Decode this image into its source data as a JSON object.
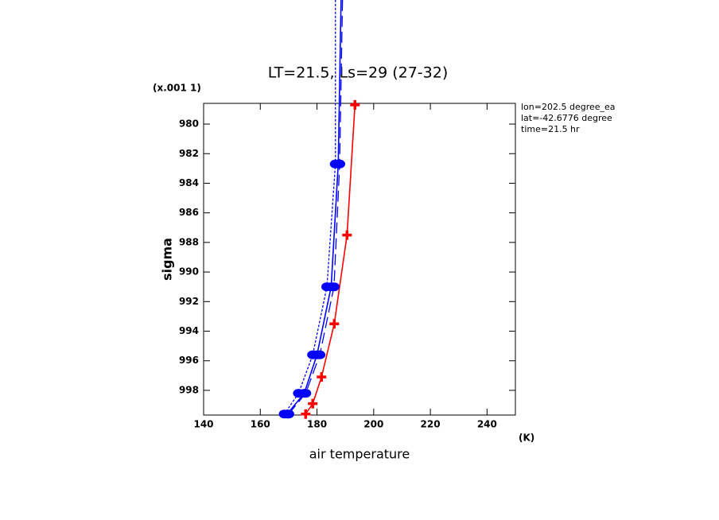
{
  "chart_data": {
    "type": "line",
    "title": "LT=21.5, Ls=29 (27-32)",
    "xlabel": "air temperature",
    "ylabel": "sigma",
    "x_unit": "(K)",
    "y_scale_label": "(x.001 1)",
    "annotations": [
      "lon=202.5 degree_ea",
      "lat=-42.6776 degree",
      "time=21.5 hr"
    ],
    "xlim": [
      140,
      250
    ],
    "xticks": [
      140,
      160,
      180,
      200,
      220,
      240
    ],
    "ylim": [
      999.67,
      978.6
    ],
    "yticks": [
      980,
      982,
      984,
      986,
      988,
      990,
      992,
      994,
      996,
      998
    ],
    "series": [
      {
        "color": "#ff0000",
        "style": "solid",
        "marker": "plus",
        "x": [
          193.4,
          190.6,
          186.1,
          181.6,
          178.5,
          176
        ],
        "y": [
          978.7,
          987.5,
          993.5,
          997.1,
          998.9,
          999.6
        ]
      },
      {
        "color": "#0000ff",
        "style": "solid",
        "marker": "circle",
        "x": [
          188.5,
          187.5,
          185,
          180,
          175.5,
          169.5
        ],
        "y": [
          971.6,
          982.7,
          991,
          995.6,
          998.2,
          999.6
        ]
      },
      {
        "color": "#0000ff",
        "style": "dashed",
        "marker": "circle",
        "x": [
          189,
          188,
          186,
          181,
          176,
          170
        ],
        "y": [
          971.6,
          982.7,
          991,
          995.6,
          998.2,
          999.6
        ]
      },
      {
        "color": "#0000ff",
        "style": "dotted",
        "marker": "circle",
        "x": [
          186.5,
          186.5,
          183.5,
          178.5,
          173.5,
          168.5
        ],
        "y": [
          971.6,
          982.7,
          991,
          995.6,
          998.2,
          999.6
        ]
      }
    ]
  }
}
